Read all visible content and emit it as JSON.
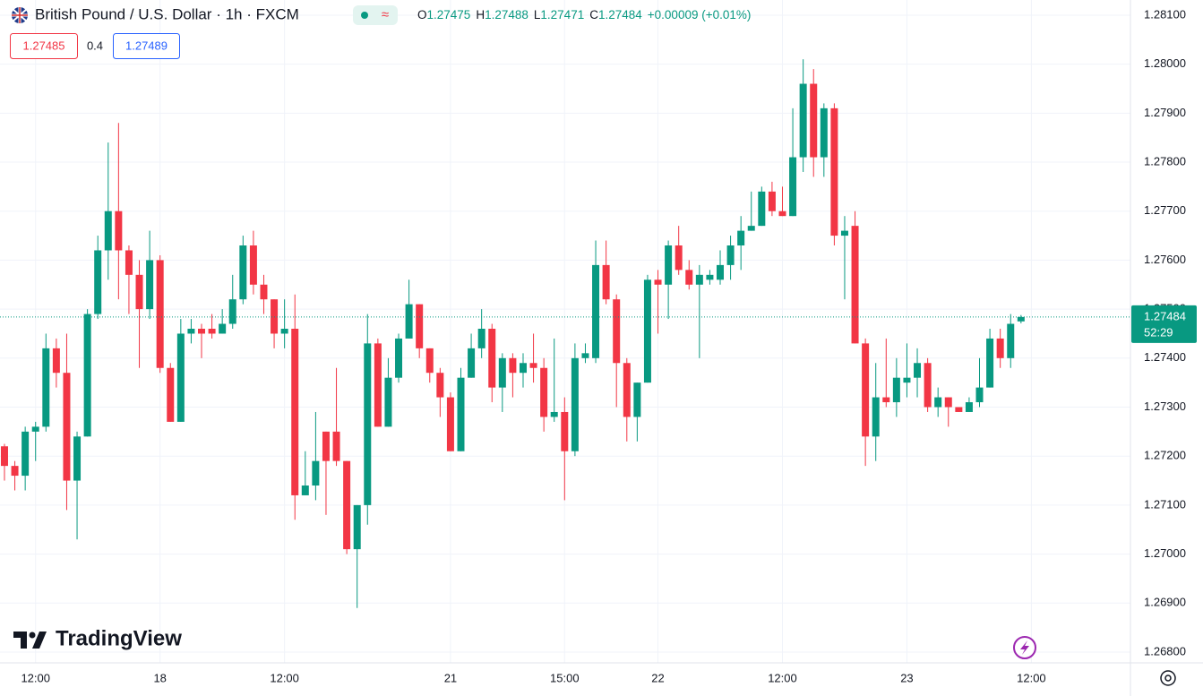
{
  "chart_data": {
    "type": "candlestick",
    "title": "British Pound / U.S. Dollar · 1h · FXCM",
    "legend": [
      {
        "label": "O",
        "value": "1.27475"
      },
      {
        "label": "H",
        "value": "1.27488"
      },
      {
        "label": "L",
        "value": "1.27471"
      },
      {
        "label": "C",
        "value": "1.27484"
      }
    ],
    "change": "+0.00009 (+0.01%)",
    "bid": "1.27485",
    "spread": "0.4",
    "ask": "1.27489",
    "last_price": {
      "value": 1.27484,
      "label": "1.27484"
    },
    "countdown": "52:29",
    "brand": "TradingView",
    "up_color": "#089981",
    "down_color": "#f23645",
    "series": {
      "open": [
        1.2722,
        1.2718,
        1.2716,
        1.2725,
        1.2726,
        1.2742,
        1.2737,
        1.2715,
        1.2724,
        1.2749,
        1.2762,
        1.277,
        1.2762,
        1.2757,
        1.275,
        1.276,
        1.2738,
        1.2727,
        1.2745,
        1.2746,
        1.2746,
        1.2745,
        1.2747,
        1.2752,
        1.2763,
        1.2755,
        1.2752,
        1.2745,
        1.2746,
        1.2712,
        1.2714,
        1.2725,
        1.2725,
        1.2719,
        1.2701,
        1.271,
        1.2743,
        1.2726,
        1.2736,
        1.2744,
        1.2751,
        1.2742,
        1.2737,
        1.2732,
        1.2721,
        1.2736,
        1.2742,
        1.2746,
        1.2734,
        1.274,
        1.2737,
        1.2739,
        1.2738,
        1.2728,
        1.2729,
        1.2721,
        1.274,
        1.274,
        1.2759,
        1.2752,
        1.2739,
        1.2728,
        1.2735,
        1.2756,
        1.2755,
        1.2763,
        1.2758,
        1.2755,
        1.2756,
        1.2756,
        1.2759,
        1.2763,
        1.2766,
        1.2767,
        1.2774,
        1.277,
        1.2769,
        1.2781,
        1.2796,
        1.2781,
        1.2791,
        1.2765,
        1.2767,
        1.2743,
        1.2724,
        1.2732,
        1.2731,
        1.2735,
        1.2736,
        1.2739,
        1.273,
        1.2732,
        1.273,
        1.2729,
        1.2731,
        1.2734,
        1.2744,
        1.274,
        1.27475
      ],
      "high": [
        1.27225,
        1.2719,
        1.2726,
        1.2727,
        1.2745,
        1.2744,
        1.2745,
        1.2725,
        1.275,
        1.2765,
        1.2784,
        1.2788,
        1.2763,
        1.276,
        1.2766,
        1.2761,
        1.2739,
        1.2748,
        1.2748,
        1.2747,
        1.2749,
        1.275,
        1.2757,
        1.2765,
        1.2766,
        1.2757,
        1.2752,
        1.2752,
        1.2753,
        1.2721,
        1.2729,
        1.2725,
        1.2738,
        1.2719,
        1.271,
        1.2749,
        1.2744,
        1.274,
        1.2745,
        1.2756,
        1.2751,
        1.2742,
        1.2738,
        1.2733,
        1.2738,
        1.2745,
        1.275,
        1.2747,
        1.2741,
        1.2741,
        1.2741,
        1.2745,
        1.274,
        1.2744,
        1.2732,
        1.2743,
        1.2743,
        1.2764,
        1.2764,
        1.2753,
        1.274,
        1.2735,
        1.2757,
        1.2758,
        1.2764,
        1.2767,
        1.276,
        1.2759,
        1.2758,
        1.2762,
        1.2765,
        1.2769,
        1.2774,
        1.2775,
        1.2776,
        1.2775,
        1.2791,
        1.2801,
        1.2799,
        1.2792,
        1.2792,
        1.2769,
        1.277,
        1.2744,
        1.2739,
        1.2744,
        1.274,
        1.2743,
        1.2742,
        1.274,
        1.2734,
        1.2732,
        1.273,
        1.2732,
        1.274,
        1.2746,
        1.2746,
        1.2749,
        1.27488
      ],
      "low": [
        1.2715,
        1.2713,
        1.2713,
        1.2719,
        1.2725,
        1.2734,
        1.2709,
        1.2703,
        1.2724,
        1.2748,
        1.2756,
        1.2752,
        1.2749,
        1.2738,
        1.2748,
        1.2737,
        1.2727,
        1.2727,
        1.2743,
        1.274,
        1.2744,
        1.2745,
        1.2746,
        1.2751,
        1.2753,
        1.2749,
        1.2742,
        1.2742,
        1.2707,
        1.2712,
        1.2711,
        1.2708,
        1.2718,
        1.27,
        1.2689,
        1.2706,
        1.2726,
        1.2726,
        1.2735,
        1.2744,
        1.274,
        1.2735,
        1.2728,
        1.2721,
        1.2721,
        1.2736,
        1.274,
        1.2731,
        1.2729,
        1.2732,
        1.2734,
        1.2735,
        1.2725,
        1.2727,
        1.2711,
        1.272,
        1.2739,
        1.2739,
        1.2751,
        1.273,
        1.2723,
        1.2723,
        1.2735,
        1.2745,
        1.2748,
        1.2757,
        1.2754,
        1.274,
        1.2755,
        1.2755,
        1.2756,
        1.2758,
        1.2766,
        1.2767,
        1.2769,
        1.2769,
        1.2769,
        1.2778,
        1.2777,
        1.2777,
        1.2763,
        1.2752,
        1.2743,
        1.2718,
        1.2719,
        1.273,
        1.2728,
        1.2732,
        1.2732,
        1.2729,
        1.2728,
        1.2726,
        1.2729,
        1.2729,
        1.273,
        1.2734,
        1.2738,
        1.2738,
        1.27471
      ],
      "close": [
        1.2718,
        1.2716,
        1.2725,
        1.2726,
        1.2742,
        1.2737,
        1.2715,
        1.2724,
        1.2749,
        1.2762,
        1.277,
        1.2762,
        1.2757,
        1.275,
        1.276,
        1.2738,
        1.2727,
        1.2745,
        1.2746,
        1.2745,
        1.2745,
        1.2747,
        1.2752,
        1.2763,
        1.2755,
        1.2752,
        1.2745,
        1.2746,
        1.2712,
        1.2714,
        1.2719,
        1.2719,
        1.2719,
        1.2701,
        1.271,
        1.2743,
        1.2726,
        1.2736,
        1.2744,
        1.2751,
        1.2742,
        1.2737,
        1.2732,
        1.2721,
        1.2736,
        1.2742,
        1.2746,
        1.2734,
        1.274,
        1.2737,
        1.2739,
        1.2738,
        1.2728,
        1.2729,
        1.2721,
        1.274,
        1.2741,
        1.2759,
        1.2752,
        1.2739,
        1.2728,
        1.2735,
        1.2756,
        1.2755,
        1.2763,
        1.2758,
        1.2755,
        1.2757,
        1.2757,
        1.2759,
        1.2763,
        1.2766,
        1.2767,
        1.2774,
        1.277,
        1.2769,
        1.2781,
        1.2796,
        1.2781,
        1.2791,
        1.2765,
        1.2766,
        1.2743,
        1.2724,
        1.2732,
        1.2731,
        1.2736,
        1.2736,
        1.2739,
        1.273,
        1.2732,
        1.273,
        1.2729,
        1.2731,
        1.2734,
        1.2744,
        1.274,
        1.2747,
        1.27484
      ]
    },
    "xlim": [
      -0.43,
      108.55
    ],
    "xticks": [
      {
        "value": 3,
        "label": "12:00"
      },
      {
        "value": 15,
        "label": "18"
      },
      {
        "value": 27,
        "label": "12:00"
      },
      {
        "value": 43,
        "label": "21"
      },
      {
        "value": 54,
        "label": "15:00"
      },
      {
        "value": 63,
        "label": "22"
      },
      {
        "value": 75,
        "label": "12:00"
      },
      {
        "value": 87,
        "label": "23"
      },
      {
        "value": 99,
        "label": "12:00"
      }
    ],
    "ylim": [
      1.26778,
      1.28131
    ],
    "yticks": [
      {
        "value": 1.268,
        "label": "1.26800"
      },
      {
        "value": 1.269,
        "label": "1.26900"
      },
      {
        "value": 1.27,
        "label": "1.27000"
      },
      {
        "value": 1.271,
        "label": "1.27100"
      },
      {
        "value": 1.272,
        "label": "1.27200"
      },
      {
        "value": 1.273,
        "label": "1.27300"
      },
      {
        "value": 1.274,
        "label": "1.27400"
      },
      {
        "value": 1.275,
        "label": "1.27500"
      },
      {
        "value": 1.276,
        "label": "1.27600"
      },
      {
        "value": 1.277,
        "label": "1.27700"
      },
      {
        "value": 1.278,
        "label": "1.27800"
      },
      {
        "value": 1.279,
        "label": "1.27900"
      },
      {
        "value": 1.28,
        "label": "1.28000"
      },
      {
        "value": 1.281,
        "label": "1.28100"
      }
    ],
    "grid": true
  }
}
